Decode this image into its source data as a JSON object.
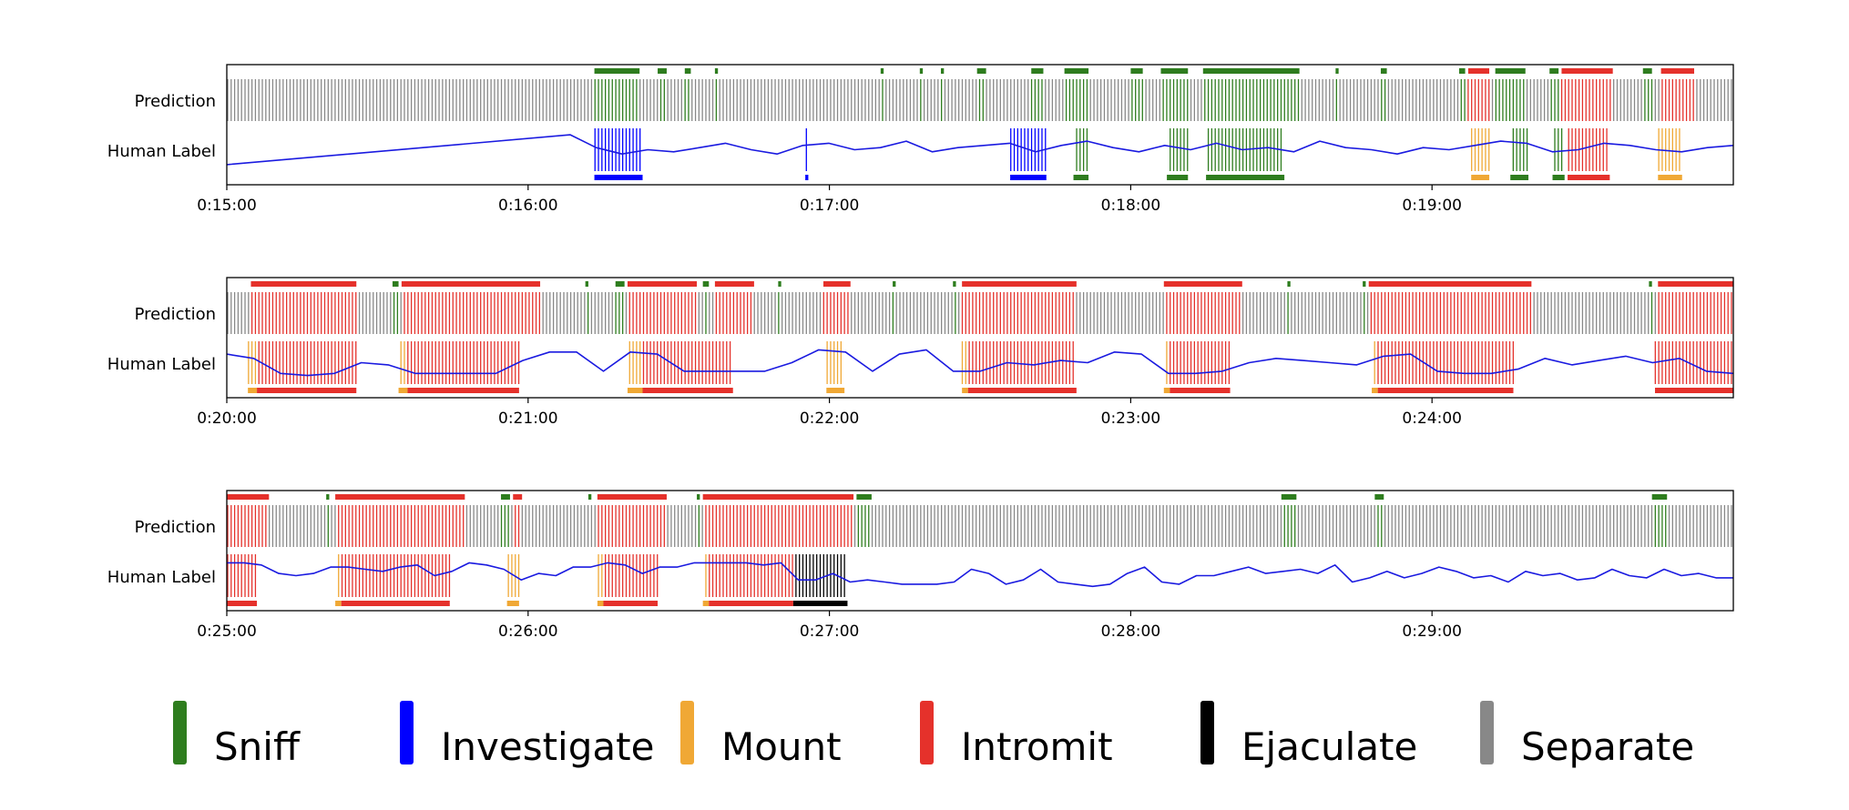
{
  "colors": {
    "sniff": "#2e7d1e",
    "investigate": "#0000ff",
    "mount": "#f0a835",
    "intromit": "#e5312b",
    "ejaculate": "#000000",
    "separate": "#888888",
    "trace": "#1a1ae0"
  },
  "legend": [
    {
      "key": "sniff",
      "label": "Sniff"
    },
    {
      "key": "investigate",
      "label": "Investigate"
    },
    {
      "key": "mount",
      "label": "Mount"
    },
    {
      "key": "intromit",
      "label": "Intromit"
    },
    {
      "key": "ejaculate",
      "label": "Ejaculate"
    },
    {
      "key": "separate",
      "label": "Separate"
    }
  ],
  "chart_data": [
    {
      "type": "timeline",
      "row_labels": [
        "Prediction",
        "Human Label"
      ],
      "x_range_min": [
        15,
        20
      ],
      "tick_labels": [
        "0:15:00",
        "0:16:00",
        "0:17:00",
        "0:18:00",
        "0:19:00"
      ],
      "pred_default": "separate",
      "pred_segments": [
        {
          "b": "sniff",
          "s": 16.22,
          "e": 16.37
        },
        {
          "b": "sniff",
          "s": 16.43,
          "e": 16.46
        },
        {
          "b": "sniff",
          "s": 16.52,
          "e": 16.54
        },
        {
          "b": "sniff",
          "s": 16.62,
          "e": 16.63
        },
        {
          "b": "sniff",
          "s": 17.17,
          "e": 17.18
        },
        {
          "b": "sniff",
          "s": 17.3,
          "e": 17.31
        },
        {
          "b": "sniff",
          "s": 17.37,
          "e": 17.38
        },
        {
          "b": "sniff",
          "s": 17.49,
          "e": 17.52
        },
        {
          "b": "sniff",
          "s": 17.67,
          "e": 17.71
        },
        {
          "b": "sniff",
          "s": 17.78,
          "e": 17.86
        },
        {
          "b": "sniff",
          "s": 18.0,
          "e": 18.04
        },
        {
          "b": "sniff",
          "s": 18.1,
          "e": 18.19
        },
        {
          "b": "sniff",
          "s": 18.24,
          "e": 18.56
        },
        {
          "b": "sniff",
          "s": 18.68,
          "e": 18.69
        },
        {
          "b": "sniff",
          "s": 18.83,
          "e": 18.85
        },
        {
          "b": "sniff",
          "s": 19.09,
          "e": 19.11
        },
        {
          "b": "intromit",
          "s": 19.12,
          "e": 19.19
        },
        {
          "b": "sniff",
          "s": 19.21,
          "e": 19.31
        },
        {
          "b": "sniff",
          "s": 19.39,
          "e": 19.42
        },
        {
          "b": "intromit",
          "s": 19.43,
          "e": 19.6
        },
        {
          "b": "sniff",
          "s": 19.7,
          "e": 19.73
        },
        {
          "b": "intromit",
          "s": 19.76,
          "e": 19.87
        }
      ],
      "label_segments": [
        {
          "b": "investigate",
          "s": 16.22,
          "e": 16.38
        },
        {
          "b": "investigate",
          "s": 16.92,
          "e": 16.93
        },
        {
          "b": "investigate",
          "s": 17.6,
          "e": 17.72
        },
        {
          "b": "sniff",
          "s": 17.81,
          "e": 17.86
        },
        {
          "b": "sniff",
          "s": 18.12,
          "e": 18.19
        },
        {
          "b": "sniff",
          "s": 18.25,
          "e": 18.51
        },
        {
          "b": "mount",
          "s": 19.13,
          "e": 19.19
        },
        {
          "b": "sniff",
          "s": 19.26,
          "e": 19.32
        },
        {
          "b": "sniff",
          "s": 19.4,
          "e": 19.44
        },
        {
          "b": "intromit",
          "s": 19.45,
          "e": 19.59
        },
        {
          "b": "mount",
          "s": 19.75,
          "e": 19.83
        }
      ],
      "trace_y": [
        0.85,
        0.15,
        0.45,
        0.6,
        0.5,
        0.55,
        0.45,
        0.35,
        0.5,
        0.6,
        0.4,
        0.35,
        0.5,
        0.45,
        0.3,
        0.55,
        0.45,
        0.4,
        0.35,
        0.55,
        0.4,
        0.3,
        0.45,
        0.55,
        0.4,
        0.5,
        0.35,
        0.5,
        0.45,
        0.55,
        0.3,
        0.45,
        0.5,
        0.6,
        0.45,
        0.5,
        0.4,
        0.3,
        0.35,
        0.55,
        0.5,
        0.35,
        0.4,
        0.5,
        0.55,
        0.45,
        0.4
      ]
    },
    {
      "type": "timeline",
      "row_labels": [
        "Prediction",
        "Human Label"
      ],
      "x_range_min": [
        20,
        25
      ],
      "tick_labels": [
        "0:20:00",
        "0:21:00",
        "0:22:00",
        "0:23:00",
        "0:24:00"
      ],
      "pred_default": "separate",
      "pred_segments": [
        {
          "b": "intromit",
          "s": 20.08,
          "e": 20.43
        },
        {
          "b": "sniff",
          "s": 20.55,
          "e": 20.57
        },
        {
          "b": "intromit",
          "s": 20.58,
          "e": 21.04
        },
        {
          "b": "sniff",
          "s": 21.19,
          "e": 21.2
        },
        {
          "b": "sniff",
          "s": 21.29,
          "e": 21.32
        },
        {
          "b": "intromit",
          "s": 21.33,
          "e": 21.56
        },
        {
          "b": "sniff",
          "s": 21.58,
          "e": 21.6
        },
        {
          "b": "intromit",
          "s": 21.62,
          "e": 21.75
        },
        {
          "b": "sniff",
          "s": 21.83,
          "e": 21.84
        },
        {
          "b": "intromit",
          "s": 21.98,
          "e": 22.07
        },
        {
          "b": "sniff",
          "s": 22.21,
          "e": 22.22
        },
        {
          "b": "sniff",
          "s": 22.41,
          "e": 22.42
        },
        {
          "b": "intromit",
          "s": 22.44,
          "e": 22.82
        },
        {
          "b": "intromit",
          "s": 23.11,
          "e": 23.37
        },
        {
          "b": "sniff",
          "s": 23.52,
          "e": 23.53
        },
        {
          "b": "sniff",
          "s": 23.77,
          "e": 23.78
        },
        {
          "b": "intromit",
          "s": 23.79,
          "e": 24.33
        },
        {
          "b": "sniff",
          "s": 24.72,
          "e": 24.73
        },
        {
          "b": "intromit",
          "s": 24.75,
          "e": 25.0
        }
      ],
      "label_segments": [
        {
          "b": "mount",
          "s": 20.07,
          "e": 20.1
        },
        {
          "b": "intromit",
          "s": 20.1,
          "e": 20.43
        },
        {
          "b": "mount",
          "s": 20.57,
          "e": 20.6
        },
        {
          "b": "intromit",
          "s": 20.6,
          "e": 20.97
        },
        {
          "b": "mount",
          "s": 21.33,
          "e": 21.38
        },
        {
          "b": "intromit",
          "s": 21.38,
          "e": 21.68
        },
        {
          "b": "mount",
          "s": 21.99,
          "e": 22.05
        },
        {
          "b": "mount",
          "s": 22.44,
          "e": 22.46
        },
        {
          "b": "intromit",
          "s": 22.46,
          "e": 22.82
        },
        {
          "b": "mount",
          "s": 23.11,
          "e": 23.13
        },
        {
          "b": "intromit",
          "s": 23.13,
          "e": 23.33
        },
        {
          "b": "mount",
          "s": 23.8,
          "e": 23.82
        },
        {
          "b": "intromit",
          "s": 23.82,
          "e": 24.27
        },
        {
          "b": "intromit",
          "s": 24.74,
          "e": 25.0
        }
      ],
      "trace_y": [
        0.3,
        0.4,
        0.75,
        0.8,
        0.75,
        0.5,
        0.55,
        0.75,
        0.75,
        0.75,
        0.75,
        0.45,
        0.25,
        0.25,
        0.7,
        0.25,
        0.3,
        0.7,
        0.7,
        0.7,
        0.7,
        0.5,
        0.2,
        0.25,
        0.7,
        0.3,
        0.2,
        0.7,
        0.7,
        0.5,
        0.55,
        0.45,
        0.5,
        0.25,
        0.3,
        0.75,
        0.75,
        0.7,
        0.5,
        0.4,
        0.45,
        0.5,
        0.55,
        0.35,
        0.3,
        0.7,
        0.75,
        0.75,
        0.65,
        0.4,
        0.55,
        0.45,
        0.35,
        0.5,
        0.4,
        0.7,
        0.75
      ]
    },
    {
      "type": "timeline",
      "row_labels": [
        "Prediction",
        "Human Label"
      ],
      "x_range_min": [
        25,
        30
      ],
      "tick_labels": [
        "0:25:00",
        "0:26:00",
        "0:27:00",
        "0:28:00",
        "0:29:00"
      ],
      "pred_default": "separate",
      "pred_segments": [
        {
          "b": "intromit",
          "s": 25.0,
          "e": 25.14
        },
        {
          "b": "sniff",
          "s": 25.33,
          "e": 25.34
        },
        {
          "b": "intromit",
          "s": 25.36,
          "e": 25.79
        },
        {
          "b": "sniff",
          "s": 25.91,
          "e": 25.94
        },
        {
          "b": "intromit",
          "s": 25.95,
          "e": 25.98
        },
        {
          "b": "sniff",
          "s": 26.2,
          "e": 26.21
        },
        {
          "b": "intromit",
          "s": 26.23,
          "e": 26.46
        },
        {
          "b": "sniff",
          "s": 26.56,
          "e": 26.57
        },
        {
          "b": "intromit",
          "s": 26.58,
          "e": 27.08
        },
        {
          "b": "sniff",
          "s": 27.09,
          "e": 27.14
        },
        {
          "b": "sniff",
          "s": 28.5,
          "e": 28.55
        },
        {
          "b": "sniff",
          "s": 28.81,
          "e": 28.84
        },
        {
          "b": "sniff",
          "s": 29.73,
          "e": 29.78
        }
      ],
      "label_segments": [
        {
          "b": "intromit",
          "s": 25.0,
          "e": 25.1
        },
        {
          "b": "mount",
          "s": 25.36,
          "e": 25.38
        },
        {
          "b": "intromit",
          "s": 25.38,
          "e": 25.74
        },
        {
          "b": "mount",
          "s": 25.93,
          "e": 25.97
        },
        {
          "b": "mount",
          "s": 26.23,
          "e": 26.25
        },
        {
          "b": "intromit",
          "s": 26.25,
          "e": 26.43
        },
        {
          "b": "mount",
          "s": 26.58,
          "e": 26.6
        },
        {
          "b": "intromit",
          "s": 26.6,
          "e": 26.88
        },
        {
          "b": "ejaculate",
          "s": 26.88,
          "e": 27.06
        }
      ],
      "trace_y": [
        0.2,
        0.2,
        0.25,
        0.45,
        0.5,
        0.45,
        0.3,
        0.3,
        0.35,
        0.4,
        0.3,
        0.25,
        0.5,
        0.4,
        0.2,
        0.25,
        0.35,
        0.6,
        0.45,
        0.5,
        0.3,
        0.3,
        0.2,
        0.25,
        0.45,
        0.3,
        0.3,
        0.2,
        0.2,
        0.2,
        0.2,
        0.25,
        0.2,
        0.6,
        0.6,
        0.45,
        0.65,
        0.6,
        0.65,
        0.7,
        0.7,
        0.7,
        0.65,
        0.35,
        0.45,
        0.7,
        0.6,
        0.35,
        0.65,
        0.7,
        0.75,
        0.7,
        0.45,
        0.3,
        0.65,
        0.7,
        0.5,
        0.5,
        0.4,
        0.3,
        0.45,
        0.4,
        0.35,
        0.45,
        0.25,
        0.65,
        0.55,
        0.4,
        0.55,
        0.45,
        0.3,
        0.4,
        0.55,
        0.5,
        0.65,
        0.4,
        0.5,
        0.45,
        0.6,
        0.55,
        0.35,
        0.5,
        0.55,
        0.35,
        0.5,
        0.45,
        0.55,
        0.55
      ]
    }
  ]
}
